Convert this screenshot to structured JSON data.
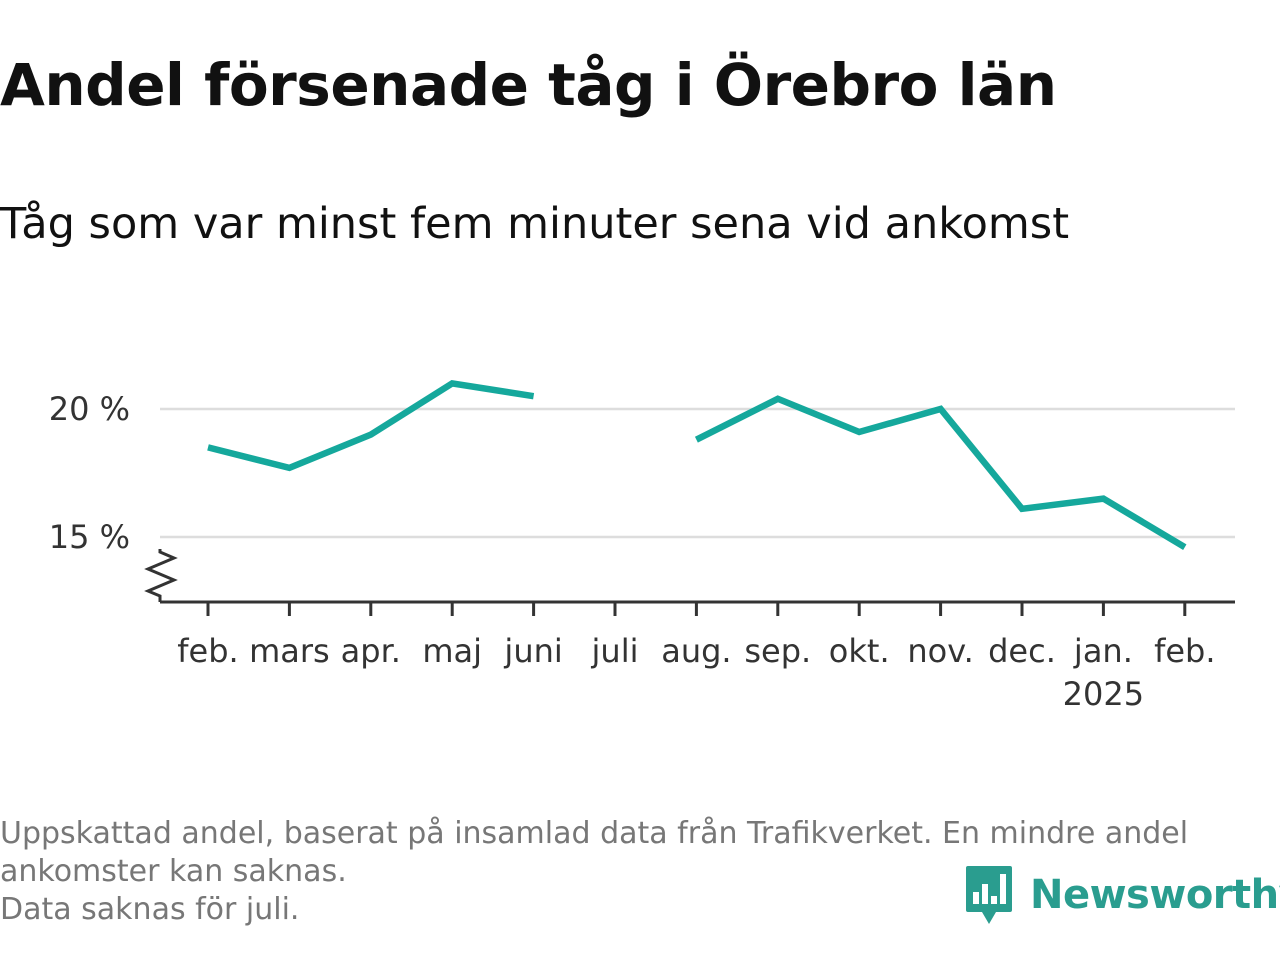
{
  "header": {
    "title": "Andel försenade tåg i Örebro län",
    "subtitle": "Tåg som var minst fem minuter sena vid ankomst"
  },
  "footnote": {
    "line1": "Uppskattad andel, baserat på insamlad data från Trafikverket. En mindre andel",
    "line2": "ankomster kan saknas.",
    "line3": "Data saknas för juli."
  },
  "brand": {
    "name": "Newsworthy",
    "icon": "newsworthy-logo-icon",
    "color": "#2a9d8f"
  },
  "colors": {
    "line": "#15a89c",
    "grid": "#dddddd",
    "axis": "#333333"
  },
  "chart_data": {
    "type": "line",
    "categories": [
      "feb.",
      "mars",
      "apr.",
      "maj",
      "juni",
      "juli",
      "aug.",
      "sep.",
      "okt.",
      "nov.",
      "dec.",
      "jan.",
      "feb."
    ],
    "category_sublabels": [
      "",
      "",
      "",
      "",
      "",
      "",
      "",
      "",
      "",
      "",
      "",
      "2025",
      ""
    ],
    "series": [
      {
        "values": [
          18.5,
          17.7,
          19.0,
          21.0,
          20.5,
          null,
          18.8,
          20.4,
          19.1,
          20.0,
          16.1,
          16.5,
          14.6
        ]
      }
    ],
    "y_ticks": [
      15,
      20
    ],
    "y_tick_labels": [
      "15 %",
      "20 %"
    ],
    "ylim": [
      12.5,
      22.5
    ],
    "grid": true,
    "axis_break": true
  }
}
